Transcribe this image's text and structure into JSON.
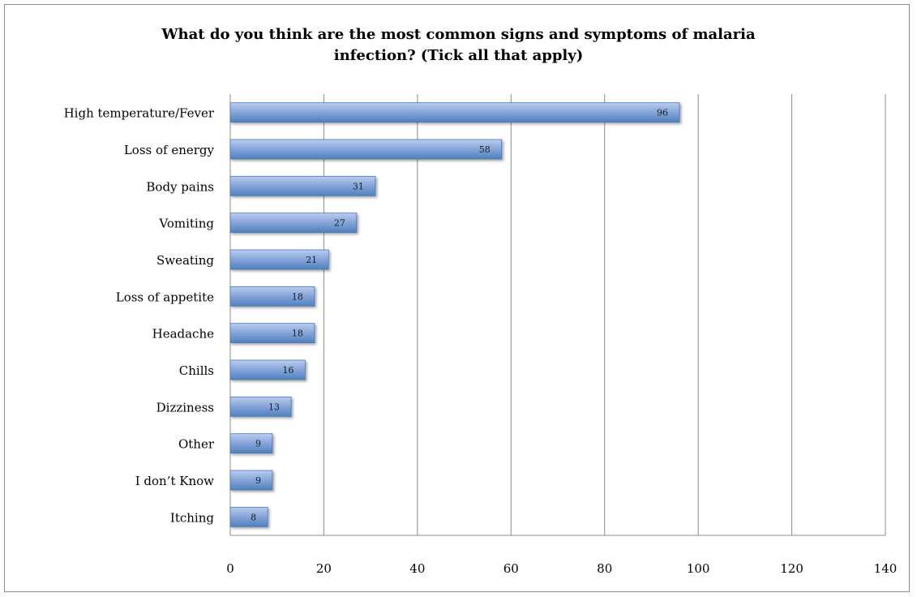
{
  "chart_data": {
    "type": "bar",
    "orientation": "horizontal",
    "title_lines": [
      "What do you think are the most common signs and symptoms of malaria",
      "infection? (Tick all that apply)"
    ],
    "categories": [
      "High temperature/Fever",
      "Loss of energy",
      "Body pains",
      "Vomiting",
      "Sweating",
      "Loss of appetite",
      "Headache",
      "Chills",
      "Dizziness",
      "Other",
      "I don’t Know",
      "Itching"
    ],
    "values": [
      96,
      58,
      31,
      27,
      21,
      18,
      18,
      16,
      13,
      9,
      9,
      8
    ],
    "xlim": [
      0,
      140
    ],
    "xticks": [
      0,
      20,
      40,
      60,
      80,
      100,
      120,
      140
    ],
    "grid": "vertical",
    "legend": "none",
    "data_labels": "inside-end",
    "colors": {
      "bar_light": "#b9cdf0",
      "bar_dark": "#4f81bd",
      "bar_stroke": "#4a76b4",
      "grid": "#8c8c8c"
    }
  }
}
